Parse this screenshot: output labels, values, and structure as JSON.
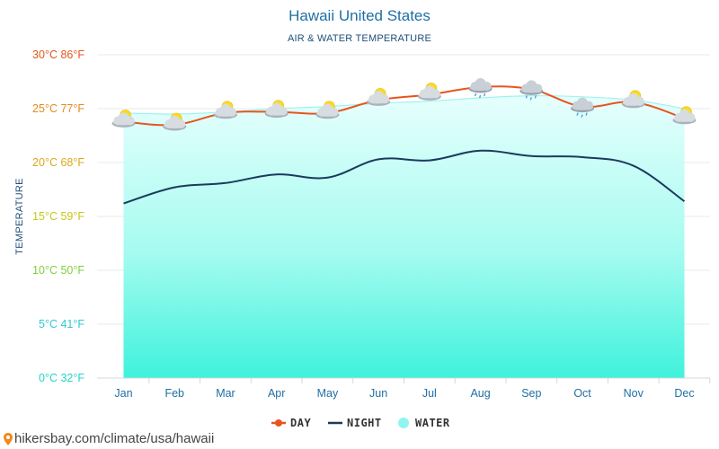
{
  "chart_data": {
    "type": "line",
    "title": "Hawaii United States",
    "subtitle": "AIR & WATER TEMPERATURE",
    "ylabel": "TEMPERATURE",
    "ylim": [
      0,
      30
    ],
    "yticks": [
      {
        "value": 0,
        "label": "0°C 32°F",
        "color": "#26d4c8"
      },
      {
        "value": 5,
        "label": "5°C 41°F",
        "color": "#2fc9d6"
      },
      {
        "value": 10,
        "label": "10°C 50°F",
        "color": "#7fd13b"
      },
      {
        "value": 15,
        "label": "15°C 59°F",
        "color": "#c9c61b"
      },
      {
        "value": 20,
        "label": "20°C 68°F",
        "color": "#d9a81b"
      },
      {
        "value": 25,
        "label": "25°C 77°F",
        "color": "#e58a1b"
      },
      {
        "value": 30,
        "label": "30°C 86°F",
        "color": "#e4571b"
      }
    ],
    "categories": [
      "Jan",
      "Feb",
      "Mar",
      "Apr",
      "May",
      "Jun",
      "Jul",
      "Aug",
      "Sep",
      "Oct",
      "Nov",
      "Dec"
    ],
    "series": [
      {
        "name": "DAY",
        "color": "#e8541e",
        "values": [
          23.8,
          23.5,
          24.6,
          24.7,
          24.6,
          25.8,
          26.3,
          27.0,
          26.8,
          25.2,
          25.6,
          24.1
        ]
      },
      {
        "name": "NIGHT",
        "color": "#1b3a5c",
        "values": [
          16.2,
          17.7,
          18.1,
          18.9,
          18.6,
          20.3,
          20.2,
          21.1,
          20.6,
          20.5,
          19.7,
          16.4
        ]
      },
      {
        "name": "WATER",
        "color": "#7ff5f0",
        "values": [
          24.6,
          24.5,
          24.7,
          25.0,
          25.2,
          25.5,
          25.7,
          26.0,
          26.2,
          26.1,
          25.8,
          25.0
        ]
      }
    ],
    "weather_icons": [
      "partly-cloudy-icon",
      "partly-cloudy-icon",
      "partly-cloudy-icon",
      "partly-cloudy-icon",
      "partly-cloudy-icon",
      "partly-cloudy-icon",
      "partly-cloudy-icon",
      "rain-cloud-icon",
      "rain-cloud-icon",
      "rain-cloud-icon",
      "partly-cloudy-icon",
      "partly-cloudy-icon"
    ],
    "grid": true,
    "legend_position": "bottom-center"
  },
  "footer": {
    "source": "hikersbay.com/climate/usa/hawaii"
  }
}
